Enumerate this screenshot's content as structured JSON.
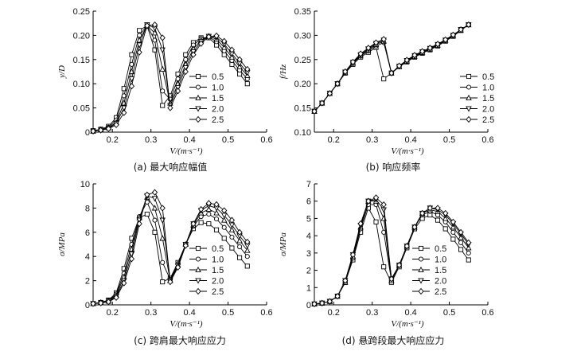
{
  "chart_data": [
    {
      "type": "line",
      "caption": "(a) 最大响应幅值",
      "xlabel": "V/(m·s⁻¹)",
      "ylabel": "y/D",
      "xlim": [
        0.15,
        0.6
      ],
      "ylim": [
        0,
        0.25
      ],
      "xticks": [
        "0.2",
        "0.3",
        "0.4",
        "0.5",
        "0.6"
      ],
      "yticks": [
        "0",
        "0.05",
        "0.10",
        "0.15",
        "0.20",
        "0.25"
      ],
      "x": [
        0.15,
        0.17,
        0.19,
        0.21,
        0.23,
        0.25,
        0.27,
        0.29,
        0.31,
        0.33,
        0.35,
        0.37,
        0.39,
        0.41,
        0.43,
        0.45,
        0.47,
        0.49,
        0.51,
        0.53,
        0.55
      ],
      "legend_position": "right-center",
      "series": [
        {
          "name": "0.5",
          "marker": "square",
          "values": [
            0.003,
            0.006,
            0.012,
            0.03,
            0.09,
            0.16,
            0.21,
            0.22,
            0.17,
            0.055,
            0.075,
            0.12,
            0.16,
            0.185,
            0.195,
            0.195,
            0.18,
            0.16,
            0.14,
            0.12,
            0.1
          ]
        },
        {
          "name": "1.0",
          "marker": "circle",
          "values": [
            0.003,
            0.005,
            0.01,
            0.025,
            0.075,
            0.14,
            0.2,
            0.22,
            0.19,
            0.085,
            0.068,
            0.11,
            0.15,
            0.18,
            0.193,
            0.197,
            0.187,
            0.168,
            0.148,
            0.128,
            0.11
          ]
        },
        {
          "name": "1.5",
          "marker": "triangle",
          "values": [
            0.002,
            0.005,
            0.009,
            0.02,
            0.06,
            0.125,
            0.19,
            0.22,
            0.205,
            0.13,
            0.06,
            0.1,
            0.14,
            0.172,
            0.19,
            0.198,
            0.192,
            0.175,
            0.155,
            0.135,
            0.117
          ]
        },
        {
          "name": "2.0",
          "marker": "tridown",
          "values": [
            0.002,
            0.004,
            0.008,
            0.018,
            0.05,
            0.11,
            0.18,
            0.222,
            0.215,
            0.17,
            0.055,
            0.092,
            0.133,
            0.166,
            0.187,
            0.198,
            0.196,
            0.182,
            0.162,
            0.142,
            0.123
          ]
        },
        {
          "name": "2.5",
          "marker": "diamond",
          "values": [
            0.002,
            0.004,
            0.007,
            0.015,
            0.04,
            0.095,
            0.165,
            0.22,
            0.222,
            0.195,
            0.05,
            0.085,
            0.125,
            0.16,
            0.183,
            0.197,
            0.199,
            0.188,
            0.17,
            0.15,
            0.13
          ]
        }
      ]
    },
    {
      "type": "line",
      "caption": "(b) 响应频率",
      "xlabel": "V/(m·s⁻¹)",
      "ylabel": "f/Hz",
      "xlim": [
        0.15,
        0.6
      ],
      "ylim": [
        0.1,
        0.35
      ],
      "xticks": [
        "0.2",
        "0.3",
        "0.4",
        "0.5",
        "0.6"
      ],
      "yticks": [
        "0.10",
        "0.15",
        "0.20",
        "0.25",
        "0.30",
        "0.35"
      ],
      "x": [
        0.15,
        0.17,
        0.19,
        0.21,
        0.23,
        0.25,
        0.27,
        0.29,
        0.31,
        0.33,
        0.35,
        0.37,
        0.39,
        0.41,
        0.43,
        0.45,
        0.47,
        0.49,
        0.51,
        0.53,
        0.55
      ],
      "legend_position": "bottom-right",
      "series": [
        {
          "name": "0.5",
          "marker": "square",
          "values": [
            0.143,
            0.16,
            0.18,
            0.2,
            0.222,
            0.24,
            0.255,
            0.265,
            0.275,
            0.21,
            0.222,
            0.235,
            0.245,
            0.255,
            0.263,
            0.27,
            0.278,
            0.288,
            0.298,
            0.31,
            0.322
          ]
        },
        {
          "name": "1.0",
          "marker": "circle",
          "values": [
            0.143,
            0.16,
            0.18,
            0.2,
            0.222,
            0.242,
            0.257,
            0.268,
            0.278,
            0.285,
            0.222,
            0.235,
            0.246,
            0.256,
            0.264,
            0.271,
            0.279,
            0.289,
            0.299,
            0.311,
            0.322
          ]
        },
        {
          "name": "1.5",
          "marker": "triangle",
          "values": [
            0.143,
            0.16,
            0.18,
            0.2,
            0.223,
            0.243,
            0.259,
            0.27,
            0.281,
            0.288,
            0.222,
            0.235,
            0.247,
            0.257,
            0.265,
            0.272,
            0.28,
            0.29,
            0.3,
            0.311,
            0.322
          ]
        },
        {
          "name": "2.0",
          "marker": "tridown",
          "values": [
            0.143,
            0.16,
            0.18,
            0.2,
            0.224,
            0.244,
            0.26,
            0.272,
            0.283,
            0.29,
            0.222,
            0.236,
            0.248,
            0.258,
            0.266,
            0.273,
            0.281,
            0.29,
            0.3,
            0.312,
            0.322
          ]
        },
        {
          "name": "2.5",
          "marker": "diamond",
          "values": [
            0.143,
            0.16,
            0.18,
            0.2,
            0.225,
            0.245,
            0.262,
            0.274,
            0.285,
            0.292,
            0.222,
            0.237,
            0.249,
            0.259,
            0.267,
            0.274,
            0.282,
            0.291,
            0.301,
            0.312,
            0.322
          ]
        }
      ]
    },
    {
      "type": "line",
      "caption": "(c) 跨肩最大响应应力",
      "xlabel": "V/(m·s⁻¹)",
      "ylabel": "σ/MPa",
      "xlim": [
        0.15,
        0.6
      ],
      "ylim": [
        0,
        10
      ],
      "xticks": [
        "0.2",
        "0.3",
        "0.4",
        "0.5",
        "0.6"
      ],
      "yticks": [
        "0",
        "2",
        "4",
        "6",
        "8",
        "10"
      ],
      "x": [
        0.15,
        0.17,
        0.19,
        0.21,
        0.23,
        0.25,
        0.27,
        0.29,
        0.31,
        0.33,
        0.35,
        0.37,
        0.39,
        0.41,
        0.43,
        0.45,
        0.47,
        0.49,
        0.51,
        0.53,
        0.55
      ],
      "legend_position": "right-center",
      "series": [
        {
          "name": "0.5",
          "marker": "square",
          "values": [
            0.1,
            0.2,
            0.4,
            1.0,
            3.0,
            5.5,
            7.2,
            7.5,
            6.0,
            1.9,
            2.2,
            3.5,
            5.0,
            6.3,
            6.8,
            6.7,
            6.2,
            5.5,
            4.7,
            3.9,
            3.2
          ]
        },
        {
          "name": "1.0",
          "marker": "circle",
          "values": [
            0.1,
            0.2,
            0.35,
            0.9,
            2.6,
            5.0,
            7.3,
            8.5,
            7.0,
            3.5,
            2.1,
            3.4,
            5.0,
            6.5,
            7.3,
            7.5,
            7.1,
            6.4,
            5.6,
            4.8,
            4.0
          ]
        },
        {
          "name": "1.5",
          "marker": "triangle",
          "values": [
            0.1,
            0.2,
            0.3,
            0.8,
            2.3,
            4.6,
            7.2,
            8.9,
            8.0,
            5.5,
            2.0,
            3.3,
            5.0,
            6.6,
            7.6,
            7.9,
            7.6,
            7.0,
            6.2,
            5.3,
            4.5
          ]
        },
        {
          "name": "2.0",
          "marker": "tridown",
          "values": [
            0.1,
            0.15,
            0.3,
            0.7,
            2.0,
            4.2,
            7.0,
            9.0,
            8.8,
            7.0,
            2.0,
            3.2,
            5.0,
            6.7,
            7.8,
            8.2,
            8.0,
            7.4,
            6.6,
            5.7,
            4.9
          ]
        },
        {
          "name": "2.5",
          "marker": "diamond",
          "values": [
            0.1,
            0.15,
            0.25,
            0.6,
            1.8,
            3.8,
            6.7,
            9.1,
            9.3,
            8.0,
            1.9,
            3.1,
            4.9,
            6.7,
            7.9,
            8.4,
            8.3,
            7.8,
            7.0,
            6.0,
            5.2
          ]
        }
      ]
    },
    {
      "type": "line",
      "caption": "(d) 悬跨段最大响应应力",
      "xlabel": "V/(m·s⁻¹)",
      "ylabel": "σ/MPa",
      "xlim": [
        0.15,
        0.6
      ],
      "ylim": [
        0,
        7
      ],
      "xticks": [
        "0.2",
        "0.3",
        "0.4",
        "0.5",
        "0.6"
      ],
      "yticks": [
        "0",
        "1",
        "2",
        "3",
        "4",
        "5",
        "6",
        "7"
      ],
      "x": [
        0.15,
        0.17,
        0.19,
        0.21,
        0.23,
        0.25,
        0.27,
        0.29,
        0.31,
        0.33,
        0.35,
        0.37,
        0.39,
        0.41,
        0.43,
        0.45,
        0.47,
        0.49,
        0.51,
        0.53,
        0.55
      ],
      "legend_position": "right-center",
      "series": [
        {
          "name": "0.5",
          "marker": "square",
          "values": [
            0.05,
            0.1,
            0.2,
            0.5,
            1.3,
            2.6,
            4.2,
            5.6,
            4.8,
            2.2,
            1.3,
            2.2,
            3.3,
            4.4,
            5.0,
            5.2,
            4.9,
            4.4,
            3.8,
            3.2,
            2.6
          ]
        },
        {
          "name": "1.0",
          "marker": "circle",
          "values": [
            0.05,
            0.1,
            0.2,
            0.5,
            1.3,
            2.7,
            4.4,
            5.8,
            5.8,
            4.2,
            1.4,
            2.3,
            3.4,
            4.5,
            5.2,
            5.4,
            5.2,
            4.8,
            4.2,
            3.6,
            3.0
          ]
        },
        {
          "name": "1.5",
          "marker": "triangle",
          "values": [
            0.05,
            0.1,
            0.2,
            0.5,
            1.3,
            2.8,
            4.5,
            6.0,
            6.0,
            5.0,
            1.4,
            2.3,
            3.4,
            4.5,
            5.3,
            5.5,
            5.4,
            5.0,
            4.5,
            3.9,
            3.3
          ]
        },
        {
          "name": "2.0",
          "marker": "tridown",
          "values": [
            0.05,
            0.1,
            0.2,
            0.5,
            1.4,
            2.9,
            4.6,
            6.0,
            6.1,
            5.5,
            1.5,
            2.3,
            3.4,
            4.5,
            5.3,
            5.6,
            5.5,
            5.2,
            4.7,
            4.1,
            3.5
          ]
        },
        {
          "name": "2.5",
          "marker": "diamond",
          "values": [
            0.05,
            0.1,
            0.2,
            0.5,
            1.4,
            2.9,
            4.7,
            6.0,
            6.2,
            5.8,
            1.5,
            2.3,
            3.4,
            4.5,
            5.3,
            5.6,
            5.6,
            5.3,
            4.8,
            4.2,
            3.6
          ]
        }
      ]
    }
  ]
}
